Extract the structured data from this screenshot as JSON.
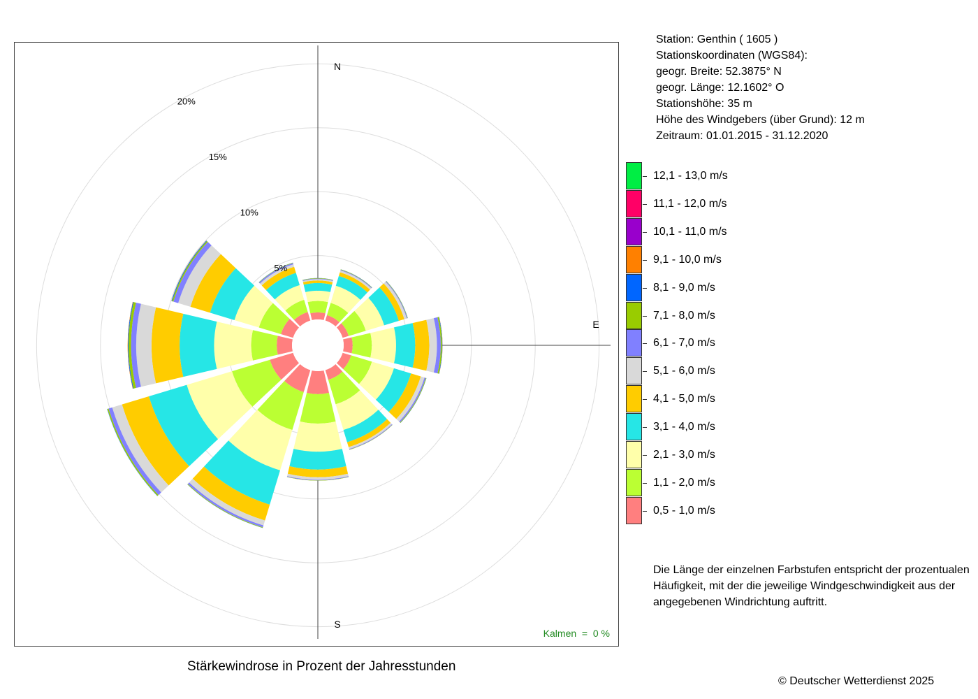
{
  "station": {
    "line1": "Station:  Genthin  ( 1605 )",
    "line2": "Stationskoordinaten (WGS84):",
    "line3": "geogr. Breite: 52.3875° N",
    "line4": "geogr. Länge: 12.1602° O",
    "line5": "Stationshöhe: 35 m",
    "line6": "Höhe des Windgebers (über Grund): 12 m",
    "line7": "Zeitraum: 01.01.2015 - 31.12.2020"
  },
  "note": "Die Länge der einzelnen Farbstufen entspricht der prozentualen Häufigkeit, mit der die jeweilige Windgeschwindigkeit aus der angegebenen Windrichtung auftritt.",
  "copyright": "© Deutscher Wetterdienst  2025",
  "chart_data": {
    "type": "windrose",
    "title": "Stärkewindrose in Prozent der Jahresstunden",
    "calm_label": "Kalmen  =  0 %",
    "unit": "%",
    "radial_ticks": [
      5,
      10,
      15,
      20
    ],
    "radial_tick_labels": [
      "5%",
      "10%",
      "15%",
      "20%"
    ],
    "direction_labels": {
      "N": "N",
      "E": "E",
      "S": "S"
    },
    "directions_deg": [
      0,
      30,
      60,
      90,
      120,
      150,
      180,
      210,
      240,
      270,
      300,
      330
    ],
    "speed_classes": [
      {
        "label": "0,5 - 1,0 m/s",
        "color": "#FF7F7F"
      },
      {
        "label": "1,1 - 2,0 m/s",
        "color": "#BBFF33"
      },
      {
        "label": "2,1 - 3,0 m/s",
        "color": "#FFFFAA"
      },
      {
        "label": "3,1 - 4,0 m/s",
        "color": "#26E6E6"
      },
      {
        "label": "4,1 - 5,0 m/s",
        "color": "#FFCC00"
      },
      {
        "label": "5,1 - 6,0 m/s",
        "color": "#D9D9D9"
      },
      {
        "label": "6,1 - 7,0 m/s",
        "color": "#8080FF"
      },
      {
        "label": "7,1 - 8,0 m/s",
        "color": "#99CC00"
      },
      {
        "label": "8,1 - 9,0 m/s",
        "color": "#0066FF"
      },
      {
        "label": "9,1 - 10,0 m/s",
        "color": "#FF8000"
      },
      {
        "label": "10,1 - 11,0 m/s",
        "color": "#9900CC"
      },
      {
        "label": "11,1 - 12,0 m/s",
        "color": "#FF0066"
      },
      {
        "label": "12,1 - 13,0 m/s",
        "color": "#00EE44"
      }
    ],
    "series": [
      {
        "direction": 0,
        "values": [
          0.55,
          0.9,
          0.8,
          0.6,
          0.2,
          0.1,
          0.05,
          0.03,
          0.01,
          0,
          0,
          0,
          0
        ]
      },
      {
        "direction": 30,
        "values": [
          0.45,
          1.0,
          1.4,
          0.8,
          0.3,
          0.15,
          0.05,
          0.03,
          0.01,
          0,
          0,
          0,
          0
        ]
      },
      {
        "direction": 60,
        "values": [
          0.5,
          1.4,
          1.5,
          1.2,
          0.45,
          0.2,
          0.05,
          0.03,
          0.01,
          0,
          0,
          0,
          0
        ]
      },
      {
        "direction": 90,
        "values": [
          0.7,
          1.5,
          1.9,
          1.5,
          1.1,
          0.6,
          0.3,
          0.1,
          0.03,
          0.01,
          0,
          0,
          0
        ]
      },
      {
        "direction": 120,
        "values": [
          0.7,
          1.7,
          1.8,
          1.4,
          0.8,
          0.3,
          0.1,
          0.05,
          0.01,
          0,
          0,
          0,
          0
        ]
      },
      {
        "direction": 150,
        "values": [
          0.8,
          2.0,
          2.1,
          1.0,
          0.4,
          0.15,
          0.05,
          0.02,
          0,
          0,
          0,
          0,
          0
        ]
      },
      {
        "direction": 180,
        "values": [
          1.8,
          2.3,
          2.2,
          1.4,
          0.6,
          0.2,
          0.05,
          0.02,
          0,
          0,
          0,
          0,
          0
        ]
      },
      {
        "direction": 210,
        "values": [
          1.8,
          3.1,
          3.3,
          2.8,
          1.3,
          0.4,
          0.15,
          0.05,
          0.01,
          0,
          0,
          0,
          0
        ]
      },
      {
        "direction": 240,
        "values": [
          1.9,
          3.1,
          3.7,
          3.1,
          2.2,
          0.8,
          0.3,
          0.1,
          0.02,
          0,
          0,
          0,
          0
        ]
      },
      {
        "direction": 270,
        "values": [
          1.2,
          2.0,
          2.9,
          2.7,
          2.2,
          1.2,
          0.4,
          0.2,
          0.05,
          0.02,
          0,
          0,
          0
        ]
      },
      {
        "direction": 300,
        "values": [
          1.0,
          1.8,
          2.0,
          2.0,
          1.6,
          1.0,
          0.4,
          0.1,
          0.05,
          0.01,
          0,
          0,
          0
        ]
      },
      {
        "direction": 330,
        "values": [
          0.7,
          1.0,
          1.2,
          1.0,
          0.5,
          0.2,
          0.1,
          0.03,
          0.01,
          0,
          0,
          0,
          0
        ]
      }
    ]
  }
}
